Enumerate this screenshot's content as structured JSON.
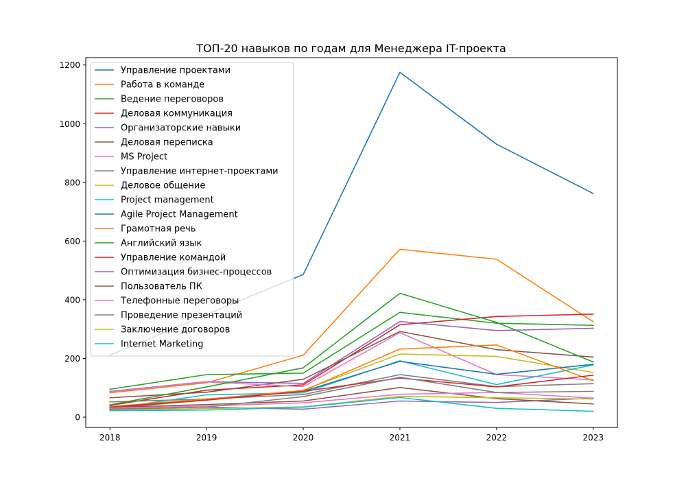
{
  "chart_data": {
    "type": "line",
    "title": "ТОП-20 навыков по годам для Менеджера IT-проекта",
    "xlabel": "",
    "ylabel": "",
    "x": [
      "2018",
      "2019",
      "2020",
      "2021",
      "2022",
      "2023"
    ],
    "xlim": [
      2017.75,
      2023.25
    ],
    "ylim": [
      -35,
      1225
    ],
    "yticks": [
      0,
      200,
      400,
      600,
      800,
      1000,
      1200
    ],
    "grid": false,
    "legend_position": "upper-left",
    "series": [
      {
        "name": "Управление проектами",
        "color": "#1f77b4",
        "values": [
          211,
          350,
          486,
          1175,
          930,
          762
        ]
      },
      {
        "name": "Работа в команде",
        "color": "#ff7f0e",
        "values": [
          83,
          117,
          211,
          572,
          538,
          325
        ]
      },
      {
        "name": "Ведение переговоров",
        "color": "#2ca02c",
        "values": [
          95,
          145,
          150,
          357,
          320,
          313
        ]
      },
      {
        "name": "Деловая коммуникация",
        "color": "#d62728",
        "values": [
          40,
          92,
          110,
          315,
          343,
          351
        ]
      },
      {
        "name": "Организаторские навыки",
        "color": "#9467bd",
        "values": [
          88,
          121,
          115,
          326,
          295,
          303
        ]
      },
      {
        "name": "Деловая переписка",
        "color": "#8c564b",
        "values": [
          66,
          85,
          129,
          292,
          230,
          205
        ]
      },
      {
        "name": "MS Project",
        "color": "#e377c2",
        "values": [
          86,
          120,
          104,
          288,
          145,
          127
        ]
      },
      {
        "name": "Управление интернет-проектами",
        "color": "#7f7f7f",
        "values": [
          52,
          62,
          77,
          145,
          104,
          114
        ]
      },
      {
        "name": "Деловое общение",
        "color": "#bcbd22",
        "values": [
          30,
          58,
          92,
          215,
          207,
          152
        ]
      },
      {
        "name": "Project management",
        "color": "#17becf",
        "values": [
          29,
          76,
          83,
          192,
          111,
          178
        ]
      },
      {
        "name": "Agile Project Management",
        "color": "#1f77b4",
        "values": [
          32,
          59,
          88,
          190,
          146,
          180
        ]
      },
      {
        "name": "Грамотная речь",
        "color": "#ff7f0e",
        "values": [
          36,
          62,
          90,
          232,
          246,
          124
        ]
      },
      {
        "name": "Английский язык",
        "color": "#2ca02c",
        "values": [
          42,
          103,
          168,
          422,
          323,
          188
        ]
      },
      {
        "name": "Управление командой",
        "color": "#d62728",
        "values": [
          34,
          58,
          88,
          133,
          103,
          143
        ]
      },
      {
        "name": "Оптимизация бизнес-процессов",
        "color": "#9467bd",
        "values": [
          28,
          34,
          27,
          55,
          50,
          65
        ]
      },
      {
        "name": "Пользователь ПК",
        "color": "#8c564b",
        "values": [
          33,
          43,
          55,
          101,
          63,
          45
        ]
      },
      {
        "name": "Телефонные переговоры",
        "color": "#e377c2",
        "values": [
          31,
          38,
          49,
          78,
          84,
          65
        ]
      },
      {
        "name": "Проведение презентаций",
        "color": "#7f7f7f",
        "values": [
          26,
          34,
          70,
          136,
          84,
          88
        ]
      },
      {
        "name": "Заключение договоров",
        "color": "#bcbd22",
        "values": [
          24,
          29,
          35,
          71,
          66,
          62
        ]
      },
      {
        "name": "Internet Marketing",
        "color": "#17becf",
        "values": [
          22,
          24,
          34,
          67,
          30,
          20
        ]
      }
    ]
  }
}
